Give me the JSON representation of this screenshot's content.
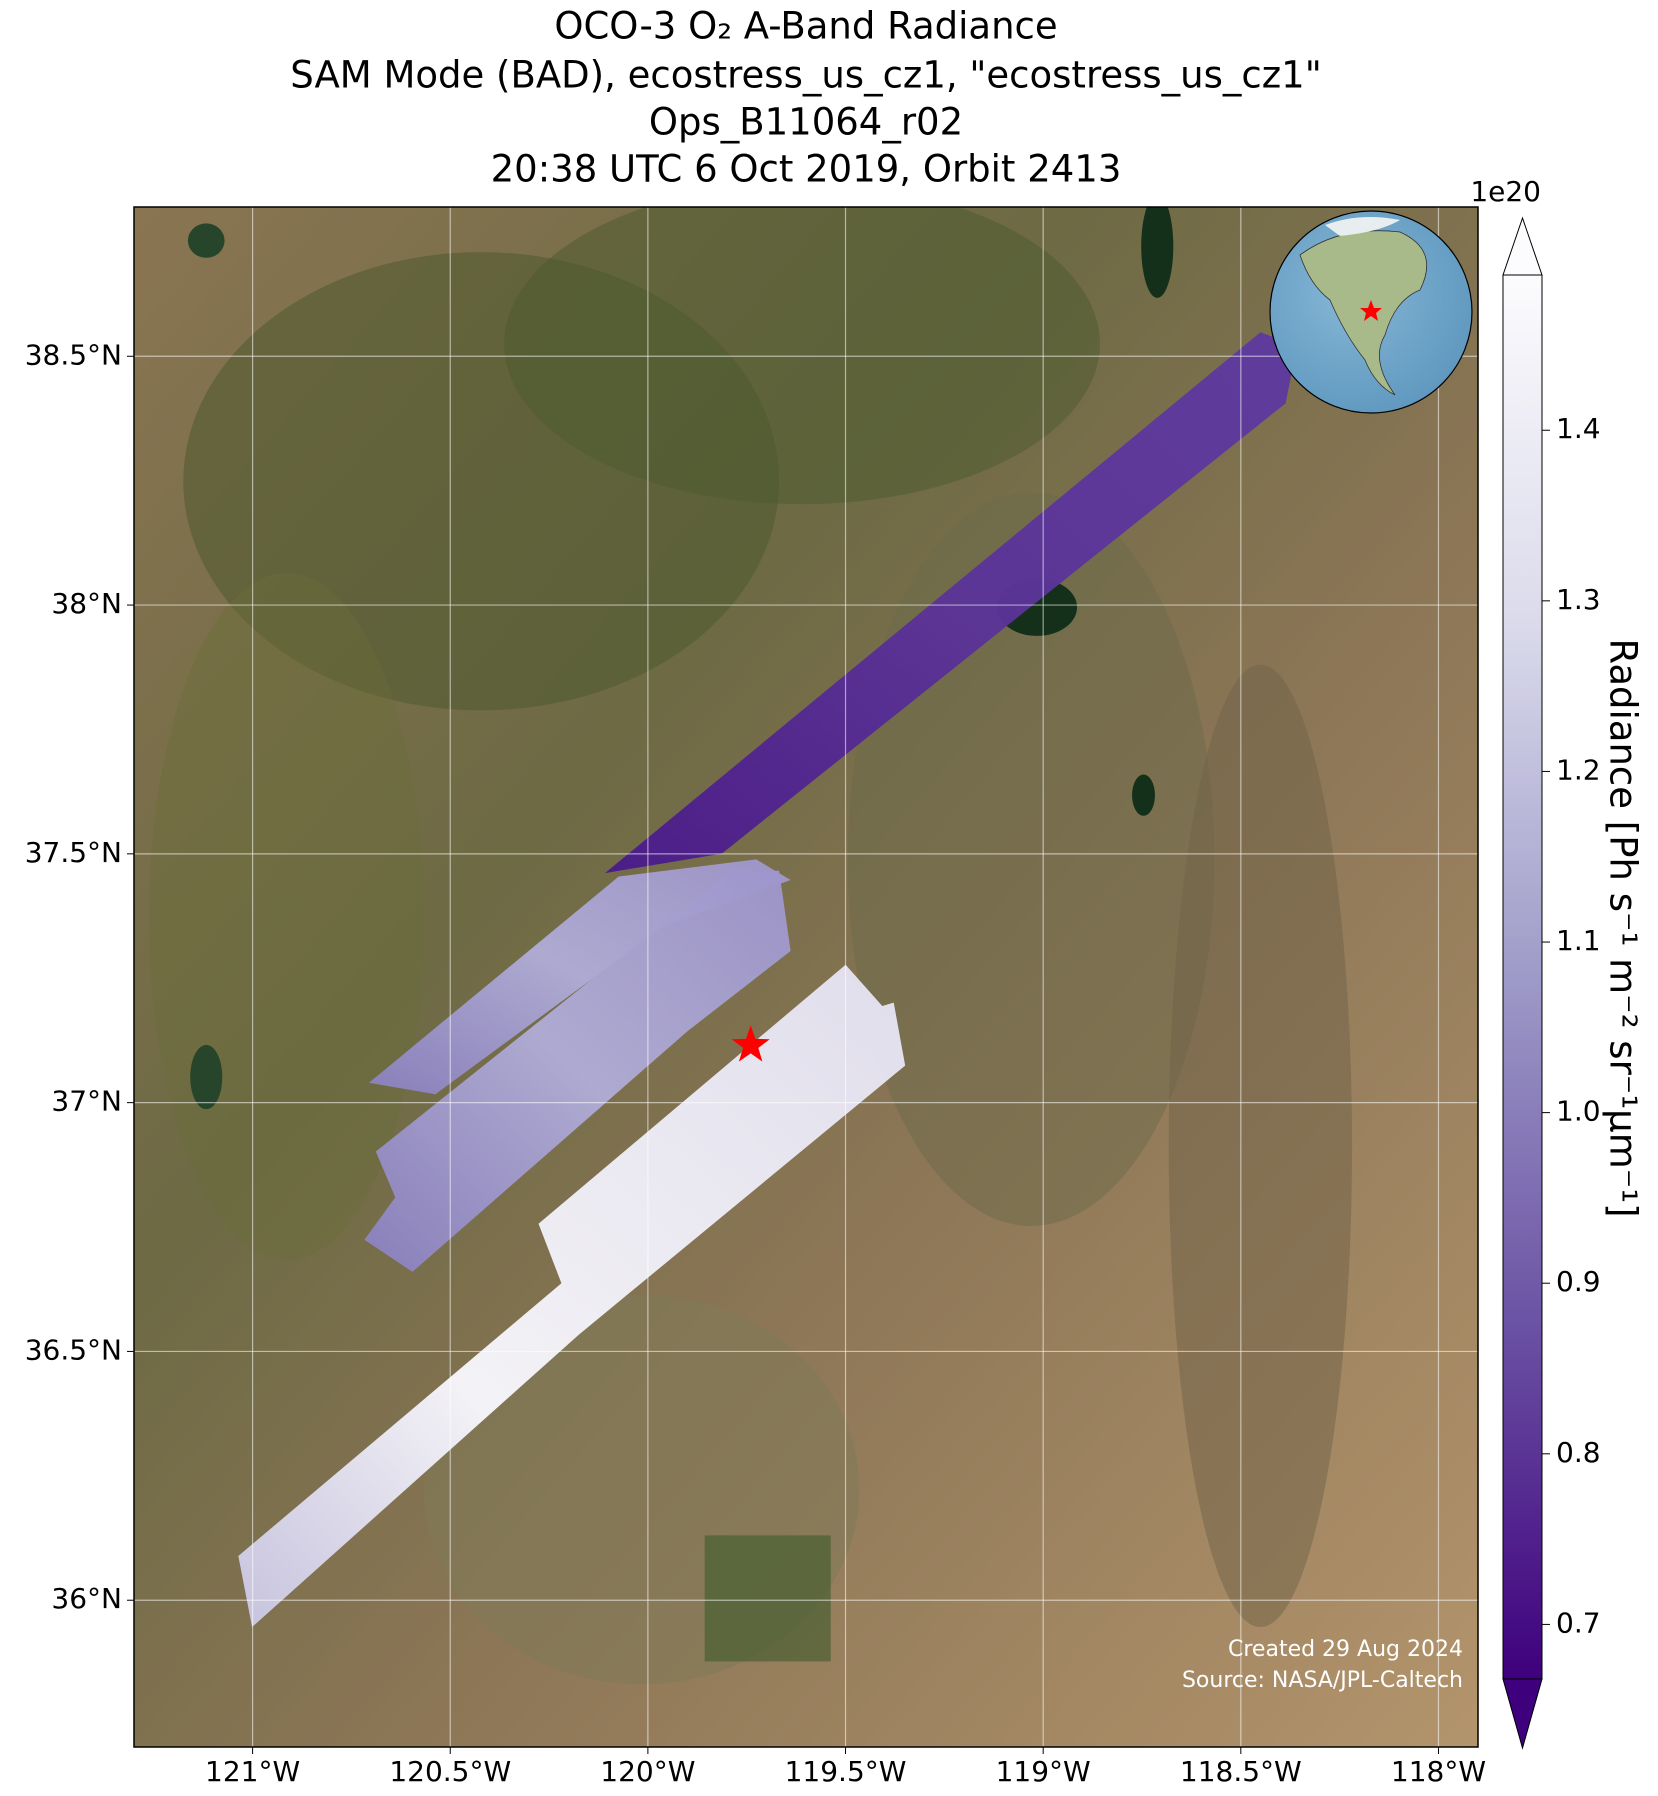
{
  "chart_data": {
    "type": "map",
    "title": [
      "OCO-3 O₂ A-Band Radiance",
      "SAM Mode (BAD), ecostress_us_cz1, \"ecostress_us_cz1\"",
      "Ops_B11064_r02",
      "20:38 UTC 6 Oct 2019, Orbit 2413"
    ],
    "xlim": [
      -121.3,
      -117.9
    ],
    "ylim": [
      35.705,
      38.8
    ],
    "xticks": [
      {
        "value": -121,
        "label": "121°W"
      },
      {
        "value": -120.5,
        "label": "120.5°W"
      },
      {
        "value": -120,
        "label": "120°W"
      },
      {
        "value": -119.5,
        "label": "119.5°W"
      },
      {
        "value": -119,
        "label": "119°W"
      },
      {
        "value": -118.5,
        "label": "118.5°W"
      },
      {
        "value": -118,
        "label": "118°W"
      }
    ],
    "yticks": [
      {
        "value": 36,
        "label": "36°N"
      },
      {
        "value": 36.5,
        "label": "36.5°N"
      },
      {
        "value": 37,
        "label": "37°N"
      },
      {
        "value": 37.5,
        "label": "37.5°N"
      },
      {
        "value": 38,
        "label": "38°N"
      },
      {
        "value": 38.5,
        "label": "38.5°N"
      }
    ],
    "grid": true,
    "target": {
      "lon": -119.74,
      "lat": 37.115,
      "color": "#ff0000"
    },
    "colorbar": {
      "label": "Radiance [Ph s⁻¹ m⁻² sr⁻¹μm⁻¹]",
      "multiplier": "1e20",
      "clim": [
        0.668,
        1.491
      ],
      "ticks": [
        0.7,
        0.8,
        0.9,
        {
          "value": 1,
          "label": "1.0"
        },
        1.1,
        1.2,
        1.3,
        1.4
      ],
      "colors": [
        "#3f007d",
        "#6a51a3",
        "#9e9ac8",
        "#dadaeb",
        "#fcfbfd"
      ]
    },
    "annotations": [
      "Created 29 Aug 2024",
      "Source: NASA/JPL-Caltech"
    ]
  }
}
